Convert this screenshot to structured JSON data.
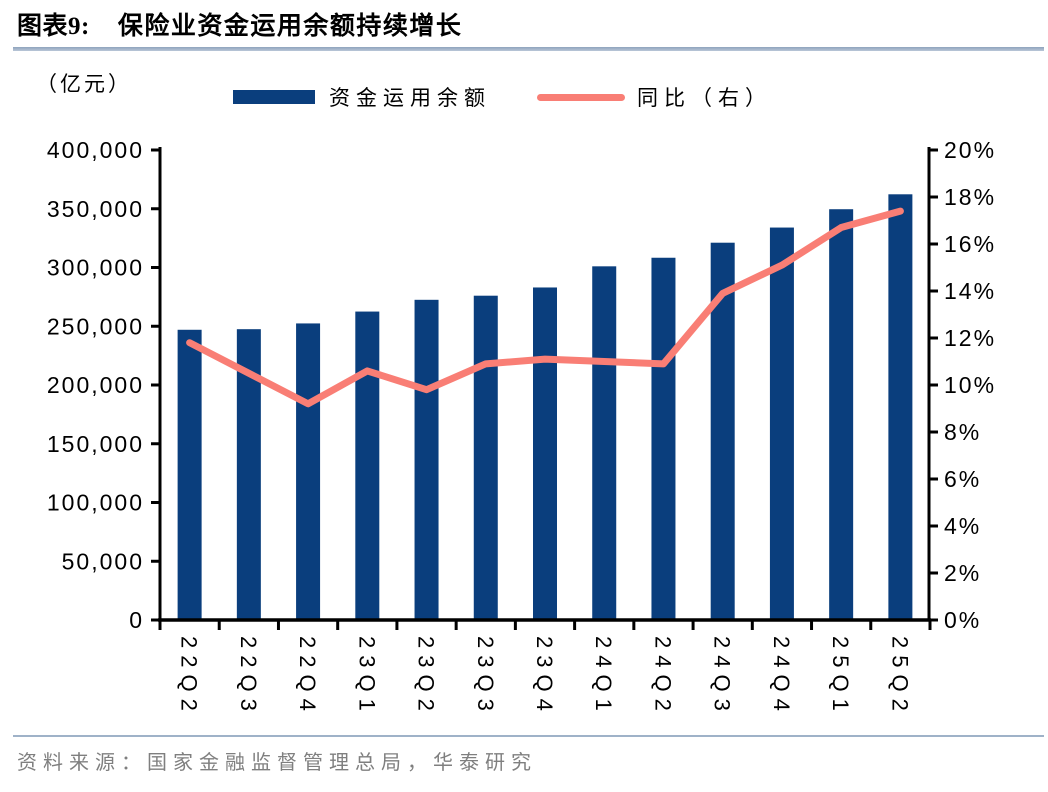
{
  "figure": {
    "label": "图表9:",
    "title": "保险业资金运用余额持续增长",
    "unit_label": "（亿元）",
    "source": "资料来源：国家金融监督管理总局，华泰研究"
  },
  "legend": {
    "bar_label": "资金运用余额",
    "line_label": "同比（右）"
  },
  "colors": {
    "bar": "#0a3e7d",
    "line": "#f97e75",
    "axis": "#000000",
    "rule": "#9fb2c8",
    "source_text": "#7f7f7f"
  },
  "chart_data": {
    "type": "bar",
    "subtype": "bar+line-combo",
    "title": "保险业资金运用余额持续增长",
    "categories": [
      "22Q2",
      "22Q3",
      "22Q4",
      "23Q1",
      "23Q2",
      "23Q3",
      "23Q4",
      "24Q1",
      "24Q2",
      "24Q3",
      "24Q4",
      "25Q1",
      "25Q2"
    ],
    "series": [
      {
        "name": "资金运用余额",
        "type": "bar",
        "axis": "left",
        "unit": "亿元",
        "values": [
          247000,
          247500,
          252400,
          262500,
          272500,
          276000,
          283000,
          301000,
          308300,
          321100,
          334000,
          349600,
          362300
        ]
      },
      {
        "name": "同比（右）",
        "type": "line",
        "axis": "right",
        "unit": "%",
        "values": [
          11.8,
          10.5,
          9.2,
          10.6,
          9.8,
          10.9,
          11.1,
          11.0,
          10.9,
          13.9,
          15.1,
          16.7,
          17.4
        ]
      }
    ],
    "left_axis": {
      "label": "（亿元）",
      "min": 0,
      "max": 400000,
      "step": 50000,
      "tick_labels": [
        "0",
        "50,000",
        "100,000",
        "150,000",
        "200,000",
        "250,000",
        "300,000",
        "350,000",
        "400,000"
      ]
    },
    "right_axis": {
      "label": "同比",
      "min": 0,
      "max": 20,
      "step": 2,
      "tick_labels": [
        "0%",
        "2%",
        "4%",
        "6%",
        "8%",
        "10%",
        "12%",
        "14%",
        "16%",
        "18%",
        "20%"
      ]
    },
    "grid": false,
    "legend_position": "top"
  }
}
